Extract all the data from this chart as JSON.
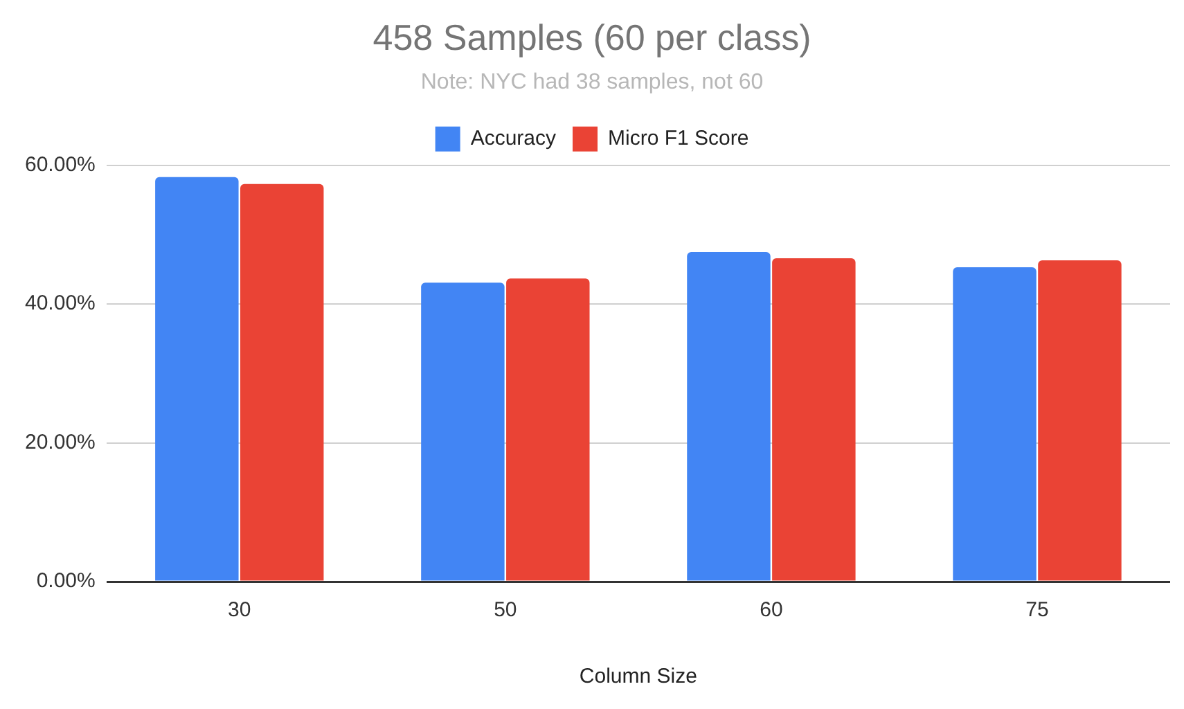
{
  "chart_data": {
    "type": "bar",
    "title": "458 Samples (60 per class)",
    "subtitle": "Note: NYC had 38 samples, not 60",
    "xlabel": "Column Size",
    "categories": [
      "30",
      "50",
      "60",
      "75"
    ],
    "series": [
      {
        "name": "Accuracy",
        "color": "#4285f4",
        "values": [
          58.3,
          43.1,
          47.5,
          45.3
        ]
      },
      {
        "name": "Micro F1 Score",
        "color": "#ea4335",
        "values": [
          57.3,
          43.7,
          46.6,
          46.3
        ]
      }
    ],
    "ylim": [
      0,
      60
    ],
    "yticks": [
      {
        "value": 0,
        "label": "0.00%"
      },
      {
        "value": 20,
        "label": "20.00%"
      },
      {
        "value": 40,
        "label": "40.00%"
      },
      {
        "value": 60,
        "label": "60.00%"
      }
    ],
    "grid": "y",
    "legend": "top"
  }
}
